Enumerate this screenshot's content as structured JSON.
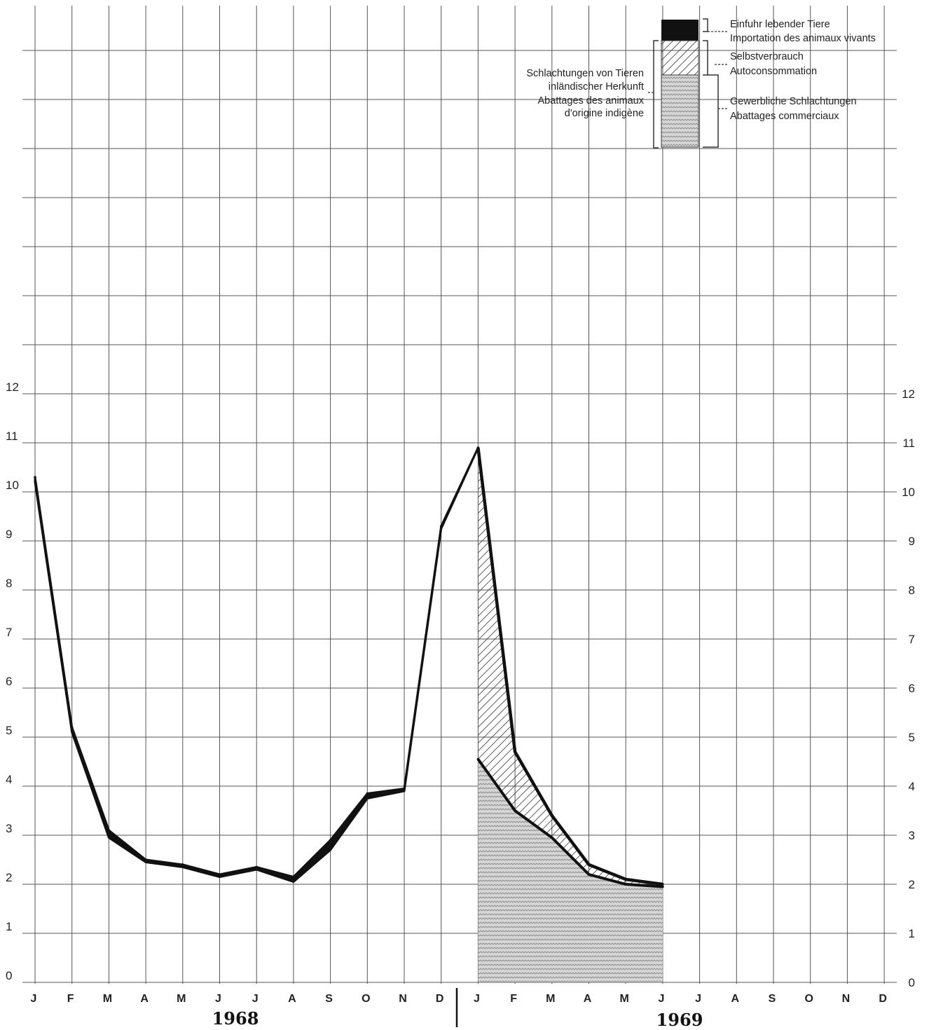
{
  "chart_data": {
    "type": "area",
    "title": "",
    "xlabel": "",
    "ylabel": "",
    "ylim": [
      0,
      12
    ],
    "y_ticks": [
      "0",
      "1",
      "2",
      "3",
      "4",
      "5",
      "6",
      "7",
      "8",
      "9",
      "10",
      "11",
      "12"
    ],
    "months": [
      "J",
      "F",
      "M",
      "A",
      "M",
      "J",
      "J",
      "A",
      "S",
      "O",
      "N",
      "D"
    ],
    "years": [
      "1968",
      "1969"
    ],
    "grid": true,
    "legend_position": "top-right",
    "series_1968": {
      "upper": [
        10.3,
        5.2,
        3.1,
        2.5,
        2.4,
        2.2,
        2.35,
        2.15,
        2.9,
        3.85,
        3.95,
        9.3
      ],
      "lower": [
        10.2,
        5.1,
        2.95,
        2.45,
        2.35,
        2.15,
        2.3,
        2.05,
        2.7,
        3.75,
        3.9,
        9.25
      ]
    },
    "series_1969": [
      {
        "name": "Selbstverbrauch / Autoconsommation",
        "top": [
          10.9,
          4.7,
          3.4,
          2.4,
          2.1,
          2.0
        ]
      },
      {
        "name": "Gewerbliche Schlachtungen / Abattages commerciaux",
        "top": [
          4.55,
          3.5,
          2.95,
          2.2,
          2.0,
          1.95
        ]
      }
    ],
    "legend": {
      "einfuhr": [
        "Einfuhr lebender Tiere",
        "Importation des animaux vivants"
      ],
      "selbst": [
        "Selbstverbrauch",
        "Autoconsommation"
      ],
      "gewerb": [
        "Gewerbliche Schlachtungen",
        "Abattages commerciaux"
      ],
      "inland": [
        "Schlachtungen von Tieren",
        "inländischer Herkunft",
        "Abattages des animaux",
        "d'origine indigène"
      ]
    },
    "colors": {
      "line": "#111111",
      "hatch": "#333333",
      "grid": "#555555"
    }
  }
}
